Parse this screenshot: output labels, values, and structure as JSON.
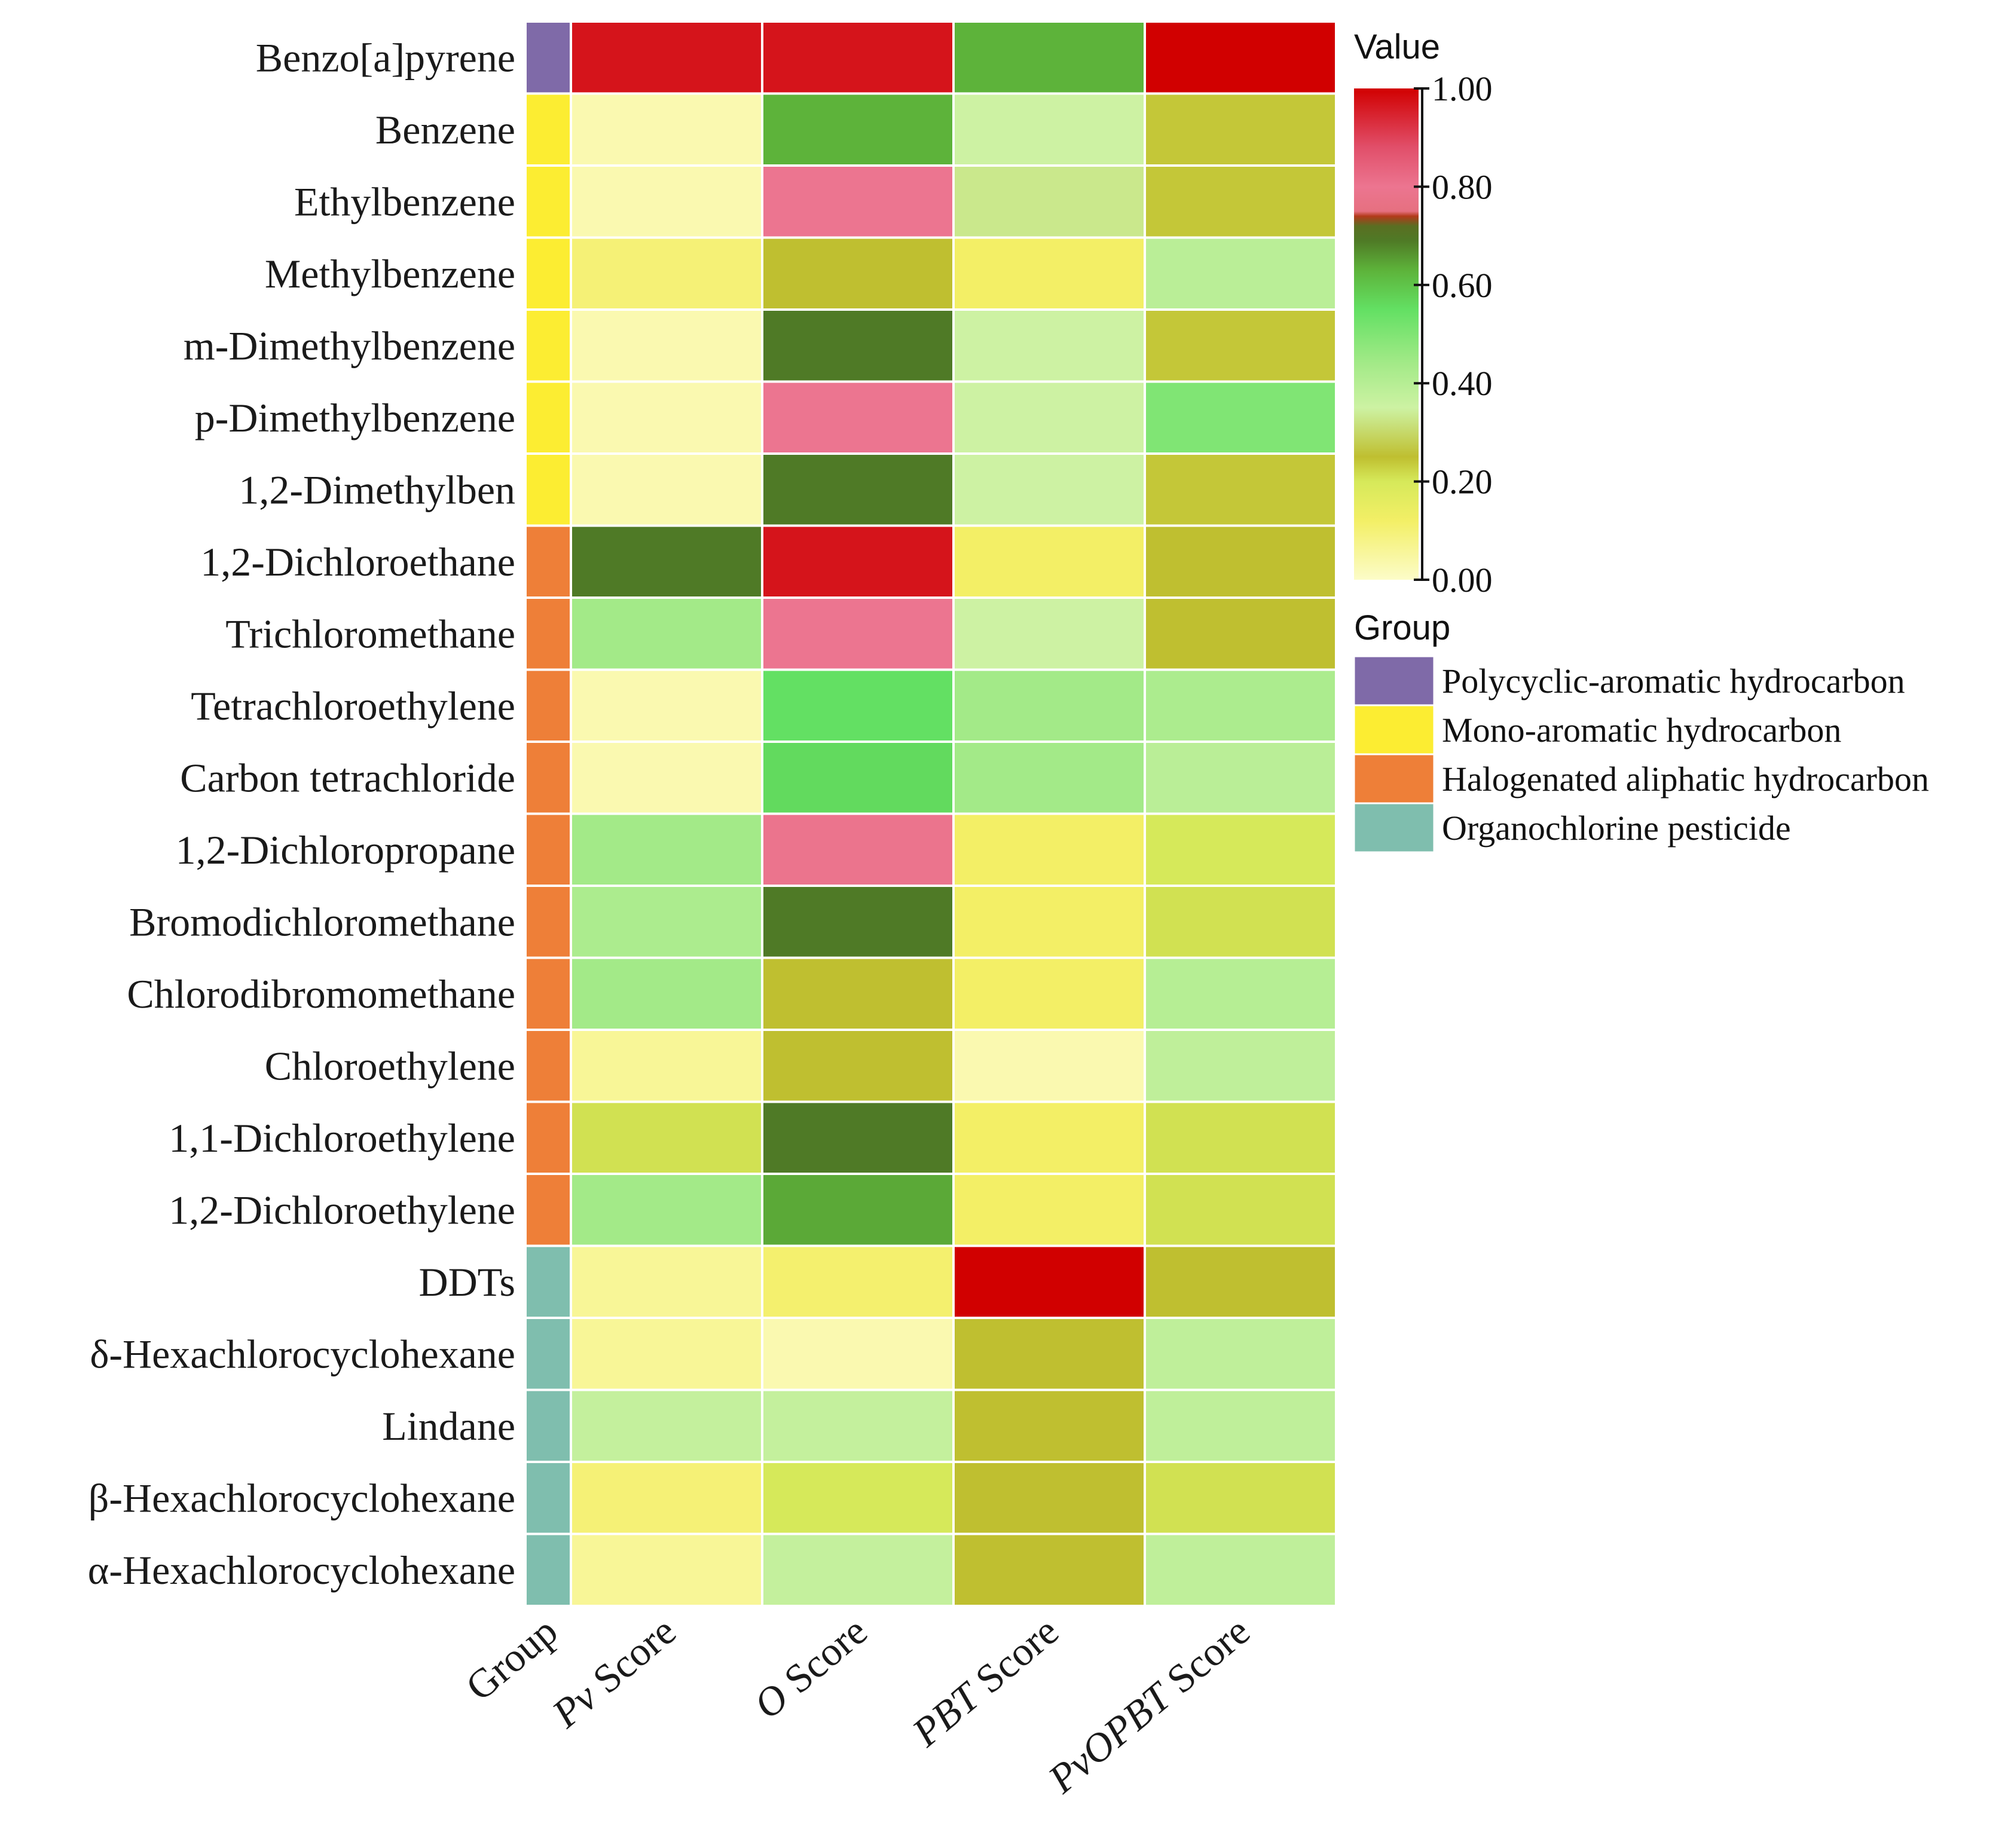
{
  "chart_data": {
    "type": "heatmap",
    "title": "",
    "rows": [
      "Benzo[a]pyrene",
      "Benzene",
      "Ethylbenzene",
      "Methylbenzene",
      "m-Dimethylbenzene",
      "p-Dimethylbenzene",
      "1,2-Dimethylben",
      "1,2-Dichloroethane",
      "Trichloromethane",
      "Tetrachloroethylene",
      "Carbon tetrachloride",
      "1,2-Dichloropropane",
      "Bromodichloromethane",
      "Chlorodibromomethane",
      "Chloroethylene",
      "1,1-Dichloroethylene",
      "1,2-Dichloroethylene",
      "DDTs",
      "δ-Hexachlorocyclohexane",
      "Lindane",
      "β-Hexachlorocyclohexane",
      "α-Hexachlorocyclohexane"
    ],
    "group_column_label": "Group",
    "score_columns": [
      {
        "label": "Pv Score",
        "italic_part": "Pv",
        "rest": " Score"
      },
      {
        "label": "O Score",
        "italic_part": "O",
        "rest": " Score"
      },
      {
        "label": "PBT Score",
        "italic_part": "PBT",
        "rest": " Score"
      },
      {
        "label": "PvOPBT Score",
        "italic_part": "PvOPBT",
        "rest": " Score"
      }
    ],
    "row_groups": [
      "Polycyclic-aromatic hydrocarbon",
      "Mono-aromatic hydrocarbon",
      "Mono-aromatic hydrocarbon",
      "Mono-aromatic hydrocarbon",
      "Mono-aromatic hydrocarbon",
      "Mono-aromatic hydrocarbon",
      "Mono-aromatic hydrocarbon",
      "Halogenated aliphatic hydrocarbon",
      "Halogenated aliphatic hydrocarbon",
      "Halogenated aliphatic hydrocarbon",
      "Halogenated aliphatic hydrocarbon",
      "Halogenated aliphatic hydrocarbon",
      "Halogenated aliphatic hydrocarbon",
      "Halogenated aliphatic hydrocarbon",
      "Halogenated aliphatic hydrocarbon",
      "Halogenated aliphatic hydrocarbon",
      "Halogenated aliphatic hydrocarbon",
      "Organochlorine pesticide",
      "Organochlorine pesticide",
      "Organochlorine pesticide",
      "Organochlorine pesticide",
      "Organochlorine pesticide"
    ],
    "values": [
      [
        0.97,
        0.97,
        0.63,
        1.0
      ],
      [
        0.03,
        0.63,
        0.35,
        0.24
      ],
      [
        0.03,
        0.8,
        0.33,
        0.24
      ],
      [
        0.1,
        0.25,
        0.12,
        0.39
      ],
      [
        0.03,
        0.69,
        0.35,
        0.24
      ],
      [
        0.03,
        0.8,
        0.35,
        0.5
      ],
      [
        0.03,
        0.69,
        0.35,
        0.24
      ],
      [
        0.69,
        0.97,
        0.12,
        0.25
      ],
      [
        0.44,
        0.8,
        0.35,
        0.25
      ],
      [
        0.03,
        0.55,
        0.44,
        0.42
      ],
      [
        0.03,
        0.56,
        0.44,
        0.39
      ],
      [
        0.44,
        0.79,
        0.12,
        0.2
      ],
      [
        0.42,
        0.69,
        0.12,
        0.21
      ],
      [
        0.44,
        0.25,
        0.12,
        0.4
      ],
      [
        0.06,
        0.25,
        0.03,
        0.38
      ],
      [
        0.21,
        0.69,
        0.12,
        0.21
      ],
      [
        0.44,
        0.64,
        0.12,
        0.21
      ],
      [
        0.06,
        0.11,
        1.0,
        0.25
      ],
      [
        0.06,
        0.03,
        0.25,
        0.38
      ],
      [
        0.37,
        0.37,
        0.25,
        0.38
      ],
      [
        0.1,
        0.2,
        0.25,
        0.21
      ],
      [
        0.06,
        0.37,
        0.25,
        0.38
      ]
    ],
    "value_range": [
      0,
      1
    ],
    "colorbar": {
      "title": "Value",
      "ticks": [
        1.0,
        0.8,
        0.6,
        0.4,
        0.2,
        0.0
      ],
      "tick_labels": [
        "1.00",
        "0.80",
        "0.60",
        "0.40",
        "0.20",
        "0.00"
      ],
      "stops": [
        {
          "value": 1.0,
          "color": "#d10000"
        },
        {
          "value": 0.88,
          "color": "#e14f6a"
        },
        {
          "value": 0.8,
          "color": "#ec7590"
        },
        {
          "value": 0.75,
          "color": "#e67080"
        },
        {
          "value": 0.74,
          "color": "#b33a1a"
        },
        {
          "value": 0.72,
          "color": "#5a6e22"
        },
        {
          "value": 0.69,
          "color": "#4f7a26"
        },
        {
          "value": 0.63,
          "color": "#5db33a"
        },
        {
          "value": 0.55,
          "color": "#63e063"
        },
        {
          "value": 0.44,
          "color": "#a3ea88"
        },
        {
          "value": 0.35,
          "color": "#cdf2a3"
        },
        {
          "value": 0.25,
          "color": "#bfbf30"
        },
        {
          "value": 0.2,
          "color": "#d6e95a"
        },
        {
          "value": 0.12,
          "color": "#f3ef66"
        },
        {
          "value": 0.0,
          "color": "#fcfcc8"
        }
      ]
    },
    "group_legend": {
      "title": "Group",
      "entries": [
        {
          "label": "Polycyclic-aromatic hydrocarbon",
          "color": "#7f6aa8"
        },
        {
          "label": "Mono-aromatic hydrocarbon",
          "color": "#fced32"
        },
        {
          "label": "Halogenated aliphatic hydrocarbon",
          "color": "#ee7f38"
        },
        {
          "label": "Organochlorine pesticide",
          "color": "#7fbeae"
        }
      ]
    }
  }
}
